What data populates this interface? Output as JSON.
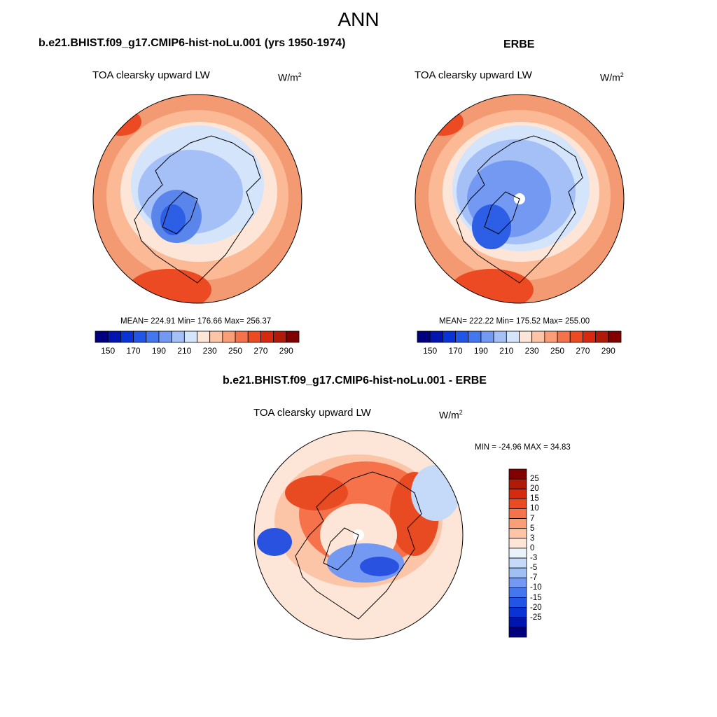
{
  "figure": {
    "title": "ANN"
  },
  "panels": {
    "model": {
      "title": "b.e21.BHIST.f09_g17.CMIP6-hist-noLu.001 (yrs 1950-1974)",
      "variable": "TOA clearsky upward LW",
      "units_base": "W/m",
      "units_exp": "2",
      "stats": "MEAN= 224.91  Min= 176.66  Max= 256.37"
    },
    "obs": {
      "title": "ERBE",
      "variable": "TOA clearsky upward LW",
      "units_base": "W/m",
      "units_exp": "2",
      "stats": "MEAN= 222.22  Min= 175.52  Max= 255.00"
    },
    "diff": {
      "title": "b.e21.BHIST.f09_g17.CMIP6-hist-noLu.001 - ERBE",
      "variable": "TOA clearsky upward LW",
      "units_base": "W/m",
      "units_exp": "2",
      "stats": "MIN = -24.96 MAX =  34.83"
    }
  },
  "colorbars": {
    "absolute": {
      "colors": [
        "#00007f",
        "#0015b0",
        "#0a33d6",
        "#2255e6",
        "#4477ee",
        "#7399f2",
        "#a5c0f6",
        "#d4e4fa",
        "#fde6d8",
        "#fcc5a8",
        "#fa9e78",
        "#f5724a",
        "#ec4a22",
        "#d52a10",
        "#b01a08",
        "#800000"
      ],
      "tick_labels": [
        "150",
        "170",
        "190",
        "210",
        "230",
        "250",
        "270",
        "290"
      ]
    },
    "difference": {
      "colors": [
        "#800000",
        "#b01a08",
        "#d52a10",
        "#ec4a22",
        "#f5724a",
        "#fa9e78",
        "#fcc5a8",
        "#fde6d8",
        "#eaf2fc",
        "#c5daf8",
        "#a0bff4",
        "#7399f2",
        "#4477ee",
        "#2255e6",
        "#0a33d6",
        "#0015b0",
        "#00007f"
      ],
      "tick_labels": [
        "25",
        "20",
        "15",
        "10",
        "7",
        "5",
        "3",
        "0",
        "-3",
        "-5",
        "-7",
        "-10",
        "-15",
        "-20",
        "-25"
      ]
    }
  },
  "colors": {
    "warm_outer": "#f39a72",
    "warm_mid": "#fcd0b6",
    "pale": "#fde6d8",
    "cool_light": "#d4e4fa",
    "cool_mid": "#a5c0f6",
    "cool_deep": "#5a86ec",
    "cool_core": "#2c5ee6",
    "diff_red": "#e84a22",
    "diff_pale": "#fde6d8",
    "diff_blue": "#2a52e0"
  }
}
